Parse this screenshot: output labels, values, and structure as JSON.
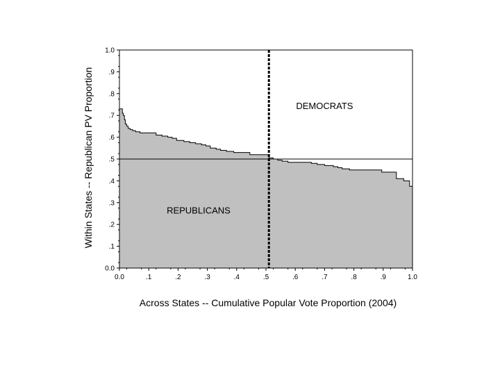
{
  "chart_data": {
    "type": "area",
    "xlabel": "Across States -- Cumulative Popular Vote Proportion (2004)",
    "ylabel": "Within States -- Republican PV Proportion",
    "xlim": [
      0,
      1
    ],
    "ylim": [
      0,
      1
    ],
    "x_ticks": [
      "0.0",
      ".1",
      ".2",
      ".3",
      ".4",
      ".5",
      ".6",
      ".7",
      ".8",
      ".9",
      "1.0"
    ],
    "y_ticks": [
      "0.0",
      ".1",
      ".2",
      ".3",
      ".4",
      ".5",
      ".6",
      ".7",
      ".8",
      ".9",
      "1.0"
    ],
    "grid": false,
    "colors": {
      "fill": "#c0c0c0",
      "line": "#000000",
      "background": "#ffffff"
    },
    "reference_lines": {
      "horizontal_y": 0.5,
      "vertical_x": 0.51
    },
    "annotations": [
      {
        "text": "DEMOCRATS",
        "x": 0.7,
        "y": 0.73
      },
      {
        "text": "REPUBLICANS",
        "x": 0.27,
        "y": 0.25
      }
    ],
    "series": [
      {
        "x": [
          0.0,
          0.01,
          0.013,
          0.017,
          0.02,
          0.025,
          0.03,
          0.037,
          0.045,
          0.055,
          0.07,
          0.125,
          0.145,
          0.165,
          0.18,
          0.195,
          0.22,
          0.24,
          0.26,
          0.28,
          0.295,
          0.31,
          0.33,
          0.345,
          0.365,
          0.39,
          0.435,
          0.445,
          0.51,
          0.525,
          0.54,
          0.555,
          0.575,
          0.615,
          0.655,
          0.675,
          0.7,
          0.73,
          0.745,
          0.76,
          0.785,
          0.81,
          0.83,
          0.875,
          0.895,
          0.945,
          0.97,
          0.99,
          1.0
        ],
        "y": [
          0.73,
          0.71,
          0.7,
          0.68,
          0.66,
          0.65,
          0.64,
          0.635,
          0.63,
          0.625,
          0.62,
          0.61,
          0.605,
          0.6,
          0.595,
          0.585,
          0.58,
          0.575,
          0.57,
          0.565,
          0.56,
          0.55,
          0.545,
          0.54,
          0.535,
          0.53,
          0.53,
          0.52,
          0.505,
          0.5,
          0.495,
          0.49,
          0.485,
          0.485,
          0.48,
          0.475,
          0.47,
          0.465,
          0.46,
          0.455,
          0.45,
          0.45,
          0.45,
          0.45,
          0.44,
          0.41,
          0.4,
          0.375,
          0.09
        ]
      }
    ]
  }
}
